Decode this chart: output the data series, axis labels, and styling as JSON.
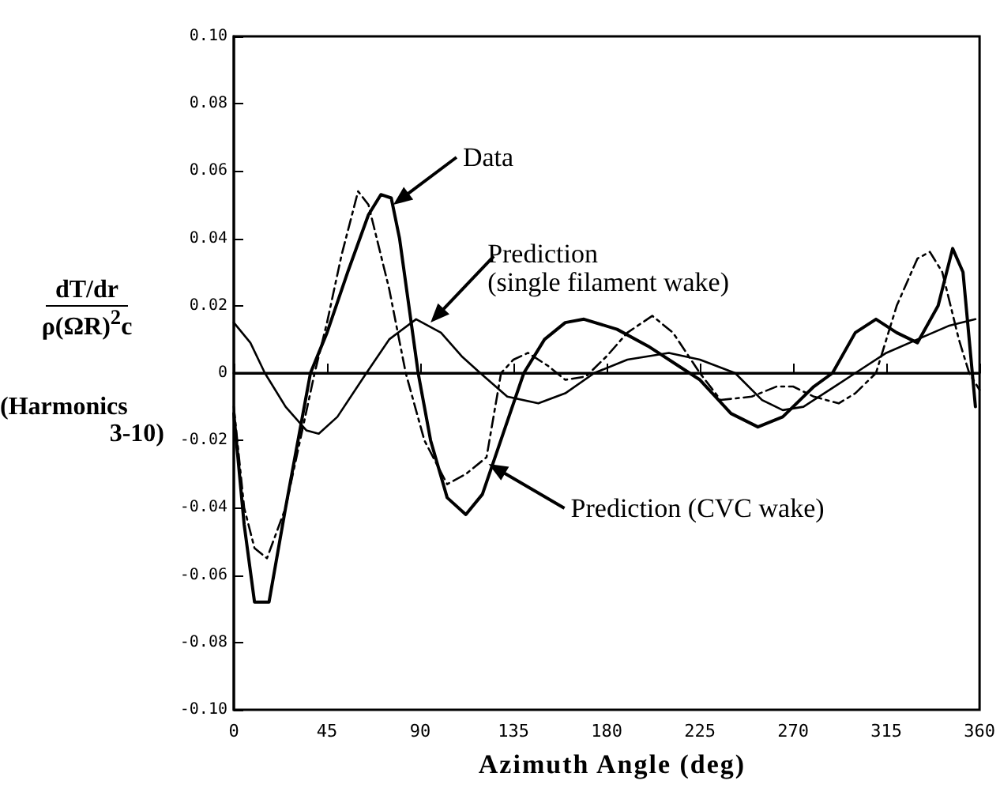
{
  "chart_data": {
    "type": "line",
    "xlabel": "Azimuth Angle (deg)",
    "ylabel": "dT/dr\nρ(ΩR)$^{2}$c\n(Harmonics\n3-10)",
    "xlim": [
      0,
      360
    ],
    "xticks": [
      0,
      45,
      90,
      135,
      180,
      225,
      270,
      315,
      360
    ],
    "ylim": [
      -0.1,
      0.1
    ],
    "yticks": [
      {
        "value": -0.1,
        "label": "-0.10"
      },
      -0.08,
      -0.06,
      -0.04,
      -0.02,
      0,
      0.02,
      0.04,
      0.06,
      0.08,
      {
        "value": 0.1,
        "label": "0.10"
      }
    ],
    "grid": false,
    "marker": "none",
    "ref_lines": [
      {
        "axis": "y",
        "value": 0
      }
    ],
    "series": [
      {
        "color": "#000000",
        "line_style": "solid",
        "x": [
          0,
          5,
          10,
          17,
          25,
          37,
          45,
          55,
          65,
          71,
          76,
          80,
          89,
          95,
          103,
          112,
          120,
          130,
          140,
          150,
          160,
          169,
          185,
          200,
          215,
          225,
          240,
          253,
          265,
          280,
          289,
          300,
          310,
          320,
          330,
          340,
          347,
          352,
          358
        ],
        "values": [
          -0.012,
          -0.045,
          -0.068,
          -0.068,
          -0.04,
          0,
          0.012,
          0.03,
          0.047,
          0.053,
          0.052,
          0.04,
          0,
          -0.02,
          -0.037,
          -0.042,
          -0.036,
          -0.018,
          0,
          0.01,
          0.015,
          0.016,
          0.013,
          0.008,
          0.002,
          -0.002,
          -0.012,
          -0.016,
          -0.013,
          -0.004,
          0,
          0.012,
          0.016,
          0.012,
          0.009,
          0.02,
          0.037,
          0.03,
          -0.01
        ]
      },
      {
        "color": "#000000",
        "line_style": "dashed",
        "x": [
          0,
          5,
          10,
          16,
          25,
          39,
          45,
          52,
          60,
          65,
          75,
          83,
          92,
          103,
          112,
          122,
          129,
          135,
          142,
          152,
          160,
          170,
          180,
          190,
          202,
          212,
          225,
          235,
          250,
          262,
          270,
          280,
          292,
          300,
          310,
          320,
          330,
          336,
          342,
          350,
          355,
          360
        ],
        "values": [
          -0.01,
          -0.04,
          -0.052,
          -0.055,
          -0.04,
          0,
          0.015,
          0.035,
          0.054,
          0.05,
          0.025,
          0,
          -0.02,
          -0.033,
          -0.03,
          -0.025,
          0,
          0.004,
          0.006,
          0.002,
          -0.002,
          -0.001,
          0.005,
          0.012,
          0.017,
          0.012,
          0,
          -0.008,
          -0.007,
          -0.004,
          -0.004,
          -0.007,
          -0.009,
          -0.006,
          0,
          0.02,
          0.034,
          0.036,
          0.03,
          0.01,
          0,
          -0.005
        ]
      },
      {
        "color": "#000000",
        "line_style": "solid",
        "x": [
          0,
          8,
          15,
          25,
          35,
          41,
          50,
          64,
          75,
          88,
          100,
          110,
          119,
          132,
          147,
          160,
          174,
          190,
          210,
          225,
          242,
          255,
          265,
          275,
          290,
          300,
          315,
          330,
          345,
          358
        ],
        "values": [
          0.015,
          0.009,
          0,
          -0.01,
          -0.017,
          -0.018,
          -0.013,
          0,
          0.01,
          0.016,
          0.012,
          0.005,
          0,
          -0.007,
          -0.009,
          -0.006,
          0,
          0.004,
          0.006,
          0.004,
          0,
          -0.008,
          -0.011,
          -0.01,
          -0.004,
          0,
          0.006,
          0.01,
          0.014,
          0.016
        ]
      }
    ],
    "annotations": [
      {
        "text": "Data",
        "x": 77,
        "y": 0.05
      },
      {
        "text": "Prediction\n(single filament wake)",
        "x": 95,
        "y": 0.015
      },
      {
        "text": "Prediction (CVC wake)",
        "x": 123,
        "y": -0.027
      }
    ]
  }
}
